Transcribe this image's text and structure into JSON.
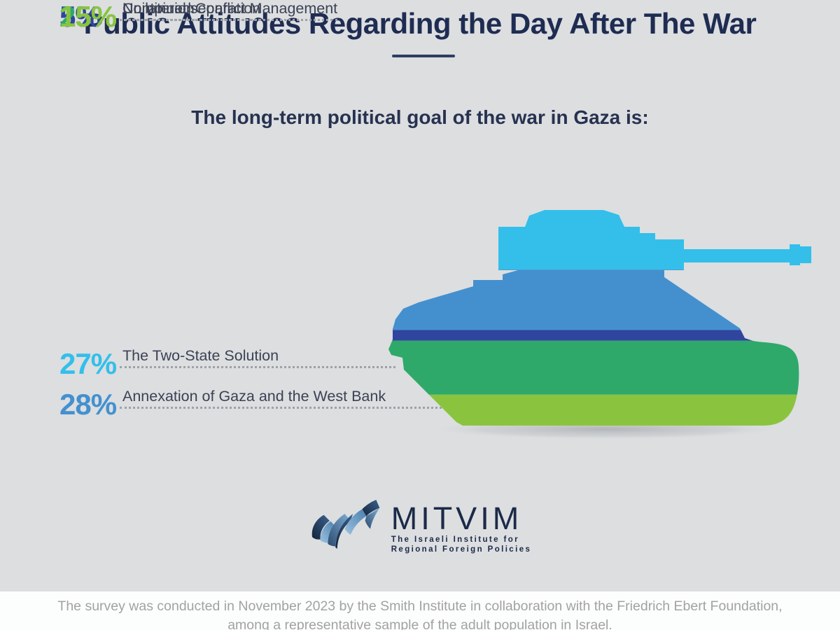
{
  "page": {
    "title": "Public Attitudes Regarding the Day After The War",
    "subtitle": "The long-term political goal of the war in Gaza is:"
  },
  "chart_data": {
    "type": "pie",
    "variant": "pictorial-stacked-bands-on-tank-silhouette",
    "title": "The long-term political goal of the war in Gaza is:",
    "categories": [
      "The Two-State Solution",
      "Annexation of Gaza and the West Bank",
      "Continued Conflict Management",
      "Unilateral separation",
      "No opinion"
    ],
    "values": [
      27,
      28,
      5,
      25,
      15
    ],
    "unit": "%",
    "total": 100,
    "legend_position": "left",
    "items": [
      {
        "pct": "27%",
        "label": "The Two-State Solution",
        "color": "#33bfea"
      },
      {
        "pct": "28%",
        "label": "Annexation of Gaza and the West Bank",
        "color": "#4490cf"
      },
      {
        "pct": "5%",
        "label": "Continued Conflict Management",
        "color": "#2f459e"
      },
      {
        "pct": "25%",
        "label": "Unilateral separation",
        "color": "#2ea96a"
      },
      {
        "pct": "15%",
        "label": "No opinion",
        "color": "#8ac43e"
      }
    ]
  },
  "logo": {
    "name": "MITVIM",
    "tagline_line1": "The Israeli Institute for",
    "tagline_line2": "Regional Foreign Policies"
  },
  "footer": {
    "line1": "The survey was conducted in November 2023 by the Smith Institute in collaboration with the Friedrich Ebert Foundation,",
    "line2": "among a representative sample of the adult population in Israel."
  },
  "colors": {
    "background": "#dcdee0",
    "title_text": "#1f2c52",
    "label_text": "#3c4254",
    "leader_dots": "#9da2a7",
    "footer_background": "#fcfdfd",
    "footer_text": "#a2a2a2",
    "logo_navy": "#1b2a47"
  }
}
